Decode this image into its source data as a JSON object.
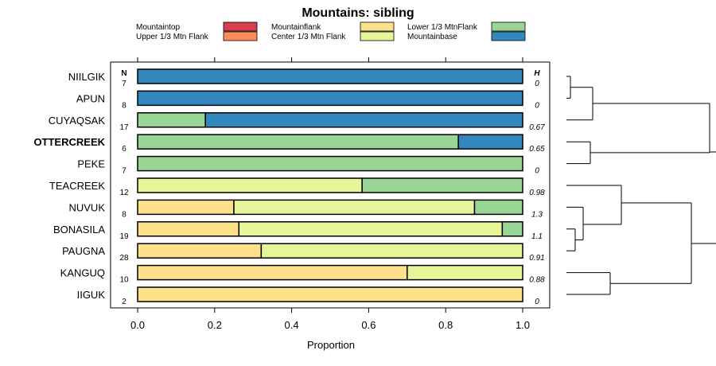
{
  "chart_data": {
    "type": "bar",
    "orientation": "horizontal-stacked",
    "title": "Mountains: sibling",
    "xlabel": "Proportion",
    "ylabel": "",
    "xlim": [
      0,
      1
    ],
    "xticks": [
      "0.0",
      "0.2",
      "0.4",
      "0.6",
      "0.8",
      "1.0"
    ],
    "xtick_values": [
      0,
      0.2,
      0.4,
      0.6,
      0.8,
      1.0
    ],
    "n_header": "N",
    "h_header": "H",
    "legend": [
      {
        "name": "Mountaintop",
        "color": "#d7404f"
      },
      {
        "name": "Upper 1/3 Mtn Flank",
        "color": "#fc8d59"
      },
      {
        "name": "Mountainflank",
        "color": "#fee08b"
      },
      {
        "name": "Center 1/3 Mtn Flank",
        "color": "#e6f598"
      },
      {
        "name": "Lower 1/3 MtnFlank",
        "color": "#99d594"
      },
      {
        "name": "Mountainbase",
        "color": "#3288bd"
      }
    ],
    "categories": [
      "NIILGIK",
      "APUN",
      "CUYAQSAK",
      "OTTERCREEK",
      "PEKE",
      "TEACREEK",
      "NUVUK",
      "BONASILA",
      "PAUGNA",
      "KANGUQ",
      "IIGUK"
    ],
    "highlight": "OTTERCREEK",
    "n_values": [
      "7",
      "8",
      "17",
      "6",
      "7",
      "12",
      "8",
      "19",
      "28",
      "10",
      "2"
    ],
    "h_values": [
      "0",
      "0",
      "0.67",
      "0.65",
      "0",
      "0.98",
      "1.3",
      "1.1",
      "0.91",
      "0.88",
      "0"
    ],
    "series": [
      {
        "name": "Mountaintop",
        "values": [
          0,
          0,
          0,
          0,
          0,
          0,
          0,
          0,
          0,
          0,
          0
        ]
      },
      {
        "name": "Upper 1/3 Mtn Flank",
        "values": [
          0,
          0,
          0,
          0,
          0,
          0,
          0,
          0,
          0,
          0,
          0
        ]
      },
      {
        "name": "Mountainflank",
        "values": [
          0,
          0,
          0,
          0,
          0,
          0,
          0.25,
          0.263,
          0.321,
          0.7,
          1.0
        ]
      },
      {
        "name": "Center 1/3 Mtn Flank",
        "values": [
          0,
          0,
          0,
          0,
          0,
          0.583,
          0.625,
          0.684,
          0.679,
          0.3,
          0
        ]
      },
      {
        "name": "Lower 1/3 MtnFlank",
        "values": [
          0,
          0,
          0.176,
          0.833,
          1.0,
          0.417,
          0.125,
          0.053,
          0,
          0,
          0
        ]
      },
      {
        "name": "Mountainbase",
        "values": [
          1.0,
          1.0,
          0.824,
          0.167,
          0,
          0,
          0,
          0,
          0,
          0,
          0
        ]
      }
    ],
    "dendrogram": {
      "description": "hierarchical clustering of the rows",
      "merges": [
        {
          "left": "NIILGIK",
          "right": "APUN",
          "height": 0.06
        },
        {
          "left": "(NIILGIK,APUN)",
          "right": "CUYAQSAK",
          "height": 0.56
        },
        {
          "left": "OTTERCREEK",
          "right": "PEKE",
          "height": 0.46
        },
        {
          "left": "BONASILA",
          "right": "PAUGNA",
          "height": 0.12
        },
        {
          "left": "NUVUK",
          "right": "(BONASILA,PAUGNA)",
          "height": 0.23
        },
        {
          "left": "TEACREEK",
          "right": "(NUVUK,BONASILA,PAUGNA)",
          "height": 1.02
        },
        {
          "left": "KANGUQ",
          "right": "IIGUK",
          "height": 0.83
        },
        {
          "left": "(TEACREEK..PAUGNA)",
          "right": "(KANGUQ,IIGUK)",
          "height": 2.31
        },
        {
          "left": "(NIILGIK,APUN,CUYAQSAK)",
          "right": "(OTTERCREEK,PEKE)",
          "height": 2.41
        },
        {
          "left": "top-group",
          "right": "bottom-group",
          "height": 2.53
        }
      ]
    }
  }
}
